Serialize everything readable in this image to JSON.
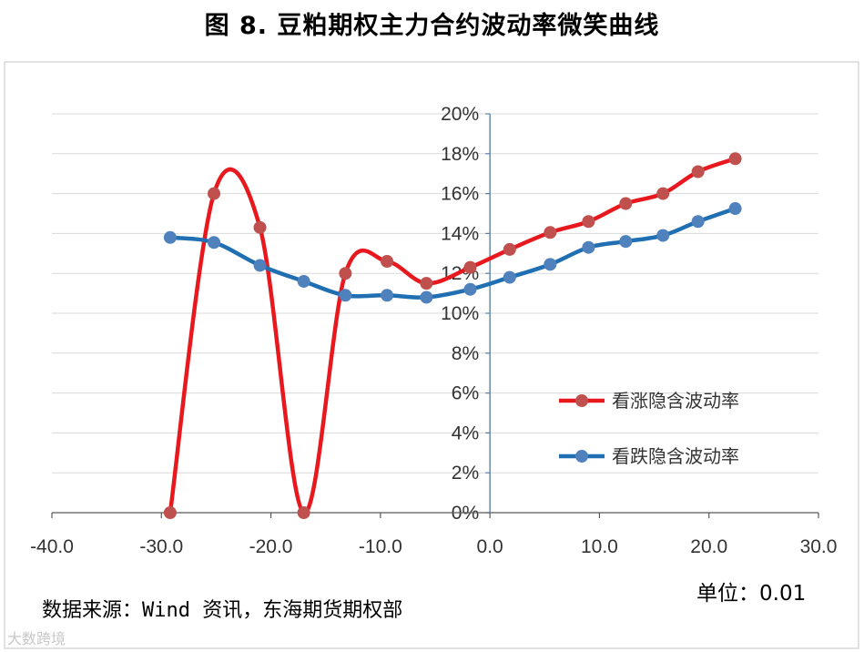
{
  "title": "图 8.  豆粕期权主力合约波动率微笑曲线",
  "source": "数据来源：Wind 资讯，东海期货期权部",
  "unit": "单位：0.01",
  "watermark": "大数跨境",
  "chart_data": {
    "type": "line",
    "title": "图 8.  豆粕期权主力合约波动率微笑曲线",
    "xlim": [
      -40,
      30
    ],
    "ylim": [
      0,
      20
    ],
    "x_ticks": [
      -40,
      -30,
      -20,
      -10,
      0,
      10,
      20,
      30
    ],
    "x_tick_labels": [
      "-40.0",
      "-30.0",
      "-20.0",
      "-10.0",
      "0.0",
      "10.0",
      "20.0",
      "30.0"
    ],
    "y_ticks": [
      0,
      2,
      4,
      6,
      8,
      10,
      12,
      14,
      16,
      18,
      20
    ],
    "y_tick_labels": [
      "0%",
      "2%",
      "4%",
      "6%",
      "8%",
      "10%",
      "12%",
      "14%",
      "16%",
      "18%",
      "20%"
    ],
    "grid": "horizontal",
    "legend_position": "center-right",
    "series": [
      {
        "name": "看涨隐含波动率",
        "color": "#e8191e",
        "marker_color": "#c0504d",
        "x": [
          -29.2,
          -25.2,
          -21.0,
          -17.0,
          -13.2,
          -9.4,
          -5.8,
          -1.8,
          1.8,
          5.5,
          9.0,
          12.4,
          15.8,
          19.0,
          22.4
        ],
        "y": [
          0.0,
          16.0,
          14.3,
          0.0,
          12.0,
          12.6,
          11.5,
          12.3,
          13.2,
          14.05,
          14.6,
          15.5,
          16.0,
          17.1,
          17.75
        ]
      },
      {
        "name": "看跌隐含波动率",
        "color": "#1f6fb2",
        "marker_color": "#4f81bd",
        "x": [
          -29.2,
          -25.2,
          -21.0,
          -17.0,
          -13.2,
          -9.4,
          -5.8,
          -1.8,
          1.8,
          5.5,
          9.0,
          12.4,
          15.8,
          19.0,
          22.4
        ],
        "y": [
          13.8,
          13.55,
          12.4,
          11.6,
          10.9,
          10.9,
          10.8,
          11.2,
          11.8,
          12.45,
          13.3,
          13.6,
          13.9,
          14.6,
          15.25
        ]
      }
    ]
  }
}
